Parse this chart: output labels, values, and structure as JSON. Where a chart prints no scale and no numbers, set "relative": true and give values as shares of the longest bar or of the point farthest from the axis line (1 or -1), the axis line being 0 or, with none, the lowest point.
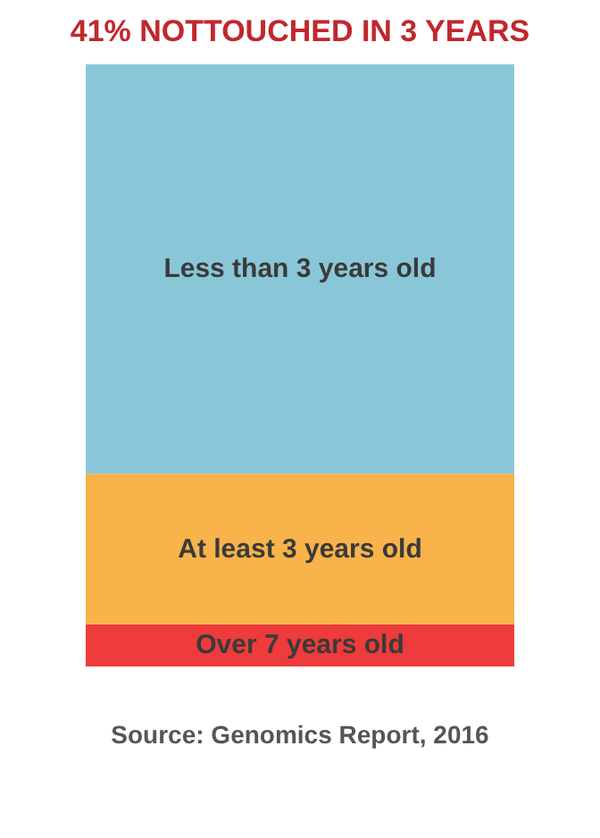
{
  "chart_data": {
    "type": "bar",
    "title": "41% NOTTOUCHED IN 3 YEARS",
    "categories": [
      null
    ],
    "stacked": true,
    "relative": true,
    "data_labels": false,
    "series": [
      {
        "name": "Over 7 years old",
        "color": "#ee3b3b",
        "values": [
          0.07
        ]
      },
      {
        "name": "At least 3 years old",
        "color": "#f8b34a",
        "values": [
          0.25
        ]
      },
      {
        "name": "Less than 3 years old",
        "color": "#89c7d8",
        "values": [
          0.68
        ]
      }
    ],
    "annotations": [
      "Source: Genomics Report, 2016"
    ]
  }
}
